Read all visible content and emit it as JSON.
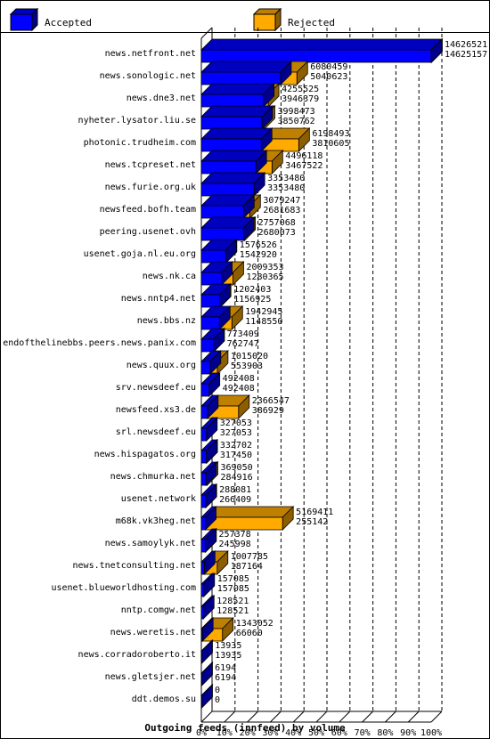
{
  "chart_data": {
    "type": "bar",
    "title": "Outgoing feeds (innfeed) by volume",
    "legend": {
      "placement": "top",
      "entries": [
        {
          "name": "Accepted",
          "color": "#0000ff"
        },
        {
          "name": "Rejected",
          "color": "#ffaa00"
        }
      ]
    },
    "xlim": [
      0,
      100
    ],
    "x_ticks": [
      "0%",
      "10%",
      "20%",
      "30%",
      "40%",
      "50%",
      "60%",
      "70%",
      "80%",
      "90%",
      "100%"
    ],
    "grid": "vertical dashed",
    "categories": [
      "news.netfront.net",
      "news.sonologic.net",
      "news.dne3.net",
      "nyheter.lysator.liu.se",
      "photonic.trudheim.com",
      "news.tcpreset.net",
      "news.furie.org.uk",
      "newsfeed.bofh.team",
      "peering.usenet.ovh",
      "usenet.goja.nl.eu.org",
      "news.nk.ca",
      "news.nntp4.net",
      "news.bbs.nz",
      "endofthelinebbs.peers.news.panix.com",
      "news.quux.org",
      "srv.newsdeef.eu",
      "newsfeed.xs3.de",
      "srl.newsdeef.eu",
      "news.hispagatos.org",
      "news.chmurka.net",
      "usenet.network",
      "m68k.vk3heg.net",
      "news.samoylyk.net",
      "news.tnetconsulting.net",
      "usenet.blueworldhosting.com",
      "nntp.comgw.net",
      "news.weretis.net",
      "news.corradoroberto.it",
      "news.gletsjer.net",
      "ddt.demos.su"
    ],
    "series": [
      {
        "name": "Accepted",
        "color": "#0000ff",
        "values": [
          14625157,
          5040623,
          3946379,
          3850762,
          3810605,
          3467522,
          3353480,
          2681683,
          2680073,
          1542920,
          1280365,
          1156925,
          1148550,
          762747,
          553903,
          492408,
          386929,
          327053,
          317450,
          284916,
          266409,
          255142,
          245998,
          187164,
          157085,
          128521,
          66060,
          13935,
          6194,
          0
        ]
      },
      {
        "name": "Rejected",
        "color": "#ffaa00",
        "values": [
          14626521,
          6080459,
          4255525,
          3998473,
          6198493,
          4496118,
          3353480,
          3079247,
          2757068,
          1576526,
          2009353,
          1202403,
          1942945,
          773409,
          1015020,
          492408,
          2366547,
          327053,
          332702,
          369050,
          288081,
          5169411,
          257378,
          1007785,
          157085,
          128521,
          1343052,
          13935,
          6194,
          0
        ]
      }
    ],
    "value_labels_top": [
      "14626521",
      "6080459",
      "4255525",
      "3998473",
      "6198493",
      "4496118",
      "3353480",
      "3079247",
      "2757068",
      "1576526",
      "2009353",
      "1202403",
      "1942945",
      "773409",
      "1015020",
      "492408",
      "2366547",
      "327053",
      "332702",
      "369050",
      "288081",
      "5169411",
      "257378",
      "1007785",
      "157085",
      "128521",
      "1343052",
      "13935",
      "6194",
      "0"
    ],
    "value_labels_bottom": [
      "14625157",
      "5040623",
      "3946379",
      "3850762",
      "3810605",
      "3467522",
      "3353480",
      "2681683",
      "2680073",
      "1542920",
      "1280365",
      "1156925",
      "1148550",
      "762747",
      "553903",
      "492408",
      "386929",
      "327053",
      "317450",
      "284916",
      "266409",
      "255142",
      "245998",
      "187164",
      "157085",
      "128521",
      "66060",
      "13935",
      "6194",
      "0"
    ]
  }
}
